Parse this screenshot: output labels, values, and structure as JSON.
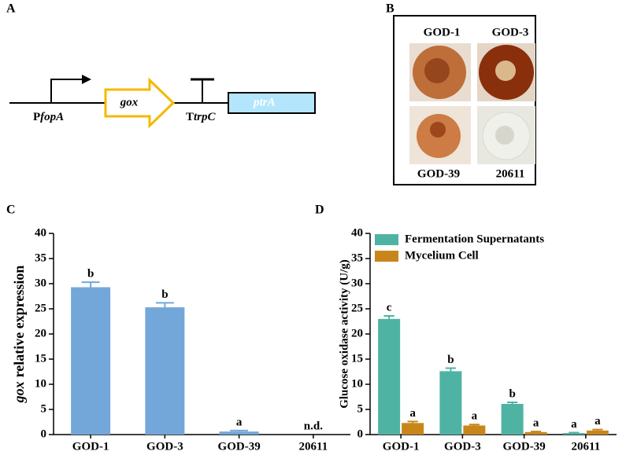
{
  "panels": {
    "a": {
      "label": "A",
      "promoter": {
        "prefix": "P",
        "name": "fopA"
      },
      "gene": "gox",
      "terminator": {
        "prefix": "T",
        "name": "trpC"
      },
      "marker": "ptrA"
    },
    "b": {
      "label": "B",
      "strains": [
        "GOD-1",
        "GOD-3",
        "GOD-39",
        "20611"
      ]
    },
    "c": {
      "label": "C"
    },
    "d": {
      "label": "D"
    }
  },
  "chart_data": [
    {
      "type": "bar",
      "ylabel_parts": [
        "gox",
        "relative expression"
      ],
      "categories": [
        "GOD-1",
        "GOD-3",
        "GOD-39",
        "20611"
      ],
      "series": [
        {
          "color": "#74a7d9",
          "values": [
            29.3,
            25.3,
            0.6,
            null
          ],
          "errors": [
            1.0,
            0.9,
            0.2,
            null
          ],
          "letters": [
            "b",
            "b",
            "a",
            "n.d."
          ]
        }
      ],
      "ylim": [
        0,
        40
      ],
      "yticks": [
        0,
        5,
        10,
        15,
        20,
        25,
        30,
        35,
        40
      ]
    },
    {
      "type": "bar",
      "ylabel": "Glucose oxidase activity (U/g)",
      "categories": [
        "GOD-1",
        "GOD-3",
        "GOD-39",
        "20611"
      ],
      "series": [
        {
          "name": "Fermentation Supernatants",
          "color": "#4fb3a4",
          "values": [
            23,
            12.6,
            6.1,
            0.3
          ],
          "errors": [
            0.6,
            0.6,
            0.3,
            0.1
          ],
          "letters": [
            "c",
            "b",
            "b",
            "a"
          ]
        },
        {
          "name": "Mycelium Cell",
          "color": "#c8861a",
          "values": [
            2.3,
            1.8,
            0.5,
            0.8
          ],
          "errors": [
            0.3,
            0.2,
            0.1,
            0.2
          ],
          "letters": [
            "a",
            "a",
            "a",
            "a"
          ]
        }
      ],
      "ylim": [
        0,
        40
      ],
      "yticks": [
        0,
        5,
        10,
        15,
        20,
        25,
        30,
        35,
        40
      ],
      "legend": "upper left"
    }
  ]
}
